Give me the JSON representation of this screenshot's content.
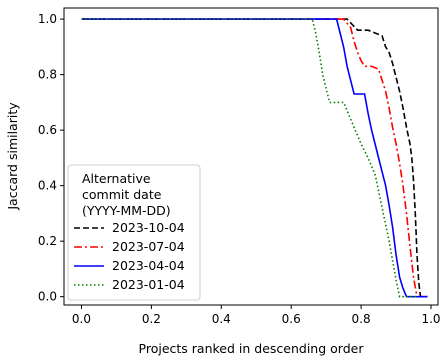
{
  "chart_data": {
    "type": "line",
    "title": "",
    "xlabel": "Projects ranked in descending order",
    "ylabel": "Jaccard similarity",
    "xlim": [
      -0.05,
      1.02
    ],
    "ylim": [
      -0.03,
      1.04
    ],
    "xticks": [
      0.0,
      0.2,
      0.4,
      0.6,
      0.8,
      1.0
    ],
    "xtick_labels": [
      "0.0",
      "0.2",
      "0.4",
      "0.6",
      "0.8",
      "1.0"
    ],
    "yticks": [
      0.0,
      0.2,
      0.4,
      0.6,
      0.8,
      1.0
    ],
    "ytick_labels": [
      "0.0",
      "0.2",
      "0.4",
      "0.6",
      "0.8",
      "1.0"
    ],
    "grid": false,
    "legend": {
      "title": [
        "Alternative",
        "commit date",
        "(YYYY-MM-DD)"
      ],
      "placement": "lower left"
    },
    "series": [
      {
        "name": "2023-10-04",
        "color": "#000000",
        "dash": "dashed",
        "points": [
          [
            0.0,
            1.0
          ],
          [
            0.76,
            1.0
          ],
          [
            0.775,
            0.98
          ],
          [
            0.79,
            0.96
          ],
          [
            0.82,
            0.96
          ],
          [
            0.84,
            0.95
          ],
          [
            0.86,
            0.94
          ],
          [
            0.87,
            0.9
          ],
          [
            0.88,
            0.88
          ],
          [
            0.89,
            0.84
          ],
          [
            0.9,
            0.79
          ],
          [
            0.91,
            0.74
          ],
          [
            0.92,
            0.68
          ],
          [
            0.93,
            0.61
          ],
          [
            0.94,
            0.55
          ],
          [
            0.945,
            0.5
          ],
          [
            0.95,
            0.42
          ],
          [
            0.955,
            0.3
          ],
          [
            0.96,
            0.15
          ],
          [
            0.965,
            0.05
          ],
          [
            0.97,
            0.0
          ],
          [
            0.99,
            0.0
          ]
        ]
      },
      {
        "name": "2023-07-04",
        "color": "#ff0000",
        "dash": "dashdot",
        "points": [
          [
            0.0,
            1.0
          ],
          [
            0.75,
            1.0
          ],
          [
            0.77,
            0.97
          ],
          [
            0.78,
            0.92
          ],
          [
            0.79,
            0.88
          ],
          [
            0.8,
            0.85
          ],
          [
            0.81,
            0.83
          ],
          [
            0.83,
            0.83
          ],
          [
            0.85,
            0.82
          ],
          [
            0.86,
            0.78
          ],
          [
            0.87,
            0.74
          ],
          [
            0.88,
            0.68
          ],
          [
            0.89,
            0.61
          ],
          [
            0.9,
            0.55
          ],
          [
            0.91,
            0.48
          ],
          [
            0.92,
            0.4
          ],
          [
            0.93,
            0.3
          ],
          [
            0.94,
            0.18
          ],
          [
            0.95,
            0.07
          ],
          [
            0.96,
            0.0
          ],
          [
            0.99,
            0.0
          ]
        ]
      },
      {
        "name": "2023-04-04",
        "color": "#0000ff",
        "dash": "solid",
        "points": [
          [
            0.0,
            1.0
          ],
          [
            0.73,
            1.0
          ],
          [
            0.74,
            0.95
          ],
          [
            0.75,
            0.9
          ],
          [
            0.76,
            0.83
          ],
          [
            0.77,
            0.78
          ],
          [
            0.78,
            0.73
          ],
          [
            0.81,
            0.73
          ],
          [
            0.82,
            0.66
          ],
          [
            0.83,
            0.6
          ],
          [
            0.84,
            0.55
          ],
          [
            0.85,
            0.5
          ],
          [
            0.86,
            0.45
          ],
          [
            0.87,
            0.4
          ],
          [
            0.88,
            0.33
          ],
          [
            0.89,
            0.25
          ],
          [
            0.9,
            0.15
          ],
          [
            0.91,
            0.07
          ],
          [
            0.92,
            0.03
          ],
          [
            0.93,
            0.0
          ],
          [
            0.99,
            0.0
          ]
        ]
      },
      {
        "name": "2023-01-04",
        "color": "#008000",
        "dash": "dotted",
        "points": [
          [
            0.0,
            1.0
          ],
          [
            0.66,
            1.0
          ],
          [
            0.67,
            0.95
          ],
          [
            0.68,
            0.88
          ],
          [
            0.69,
            0.8
          ],
          [
            0.7,
            0.75
          ],
          [
            0.71,
            0.7
          ],
          [
            0.75,
            0.7
          ],
          [
            0.76,
            0.67
          ],
          [
            0.78,
            0.61
          ],
          [
            0.8,
            0.55
          ],
          [
            0.82,
            0.5
          ],
          [
            0.84,
            0.44
          ],
          [
            0.85,
            0.38
          ],
          [
            0.86,
            0.32
          ],
          [
            0.87,
            0.26
          ],
          [
            0.88,
            0.2
          ],
          [
            0.89,
            0.13
          ],
          [
            0.9,
            0.06
          ],
          [
            0.91,
            0.0
          ],
          [
            0.96,
            0.0
          ]
        ]
      }
    ]
  }
}
